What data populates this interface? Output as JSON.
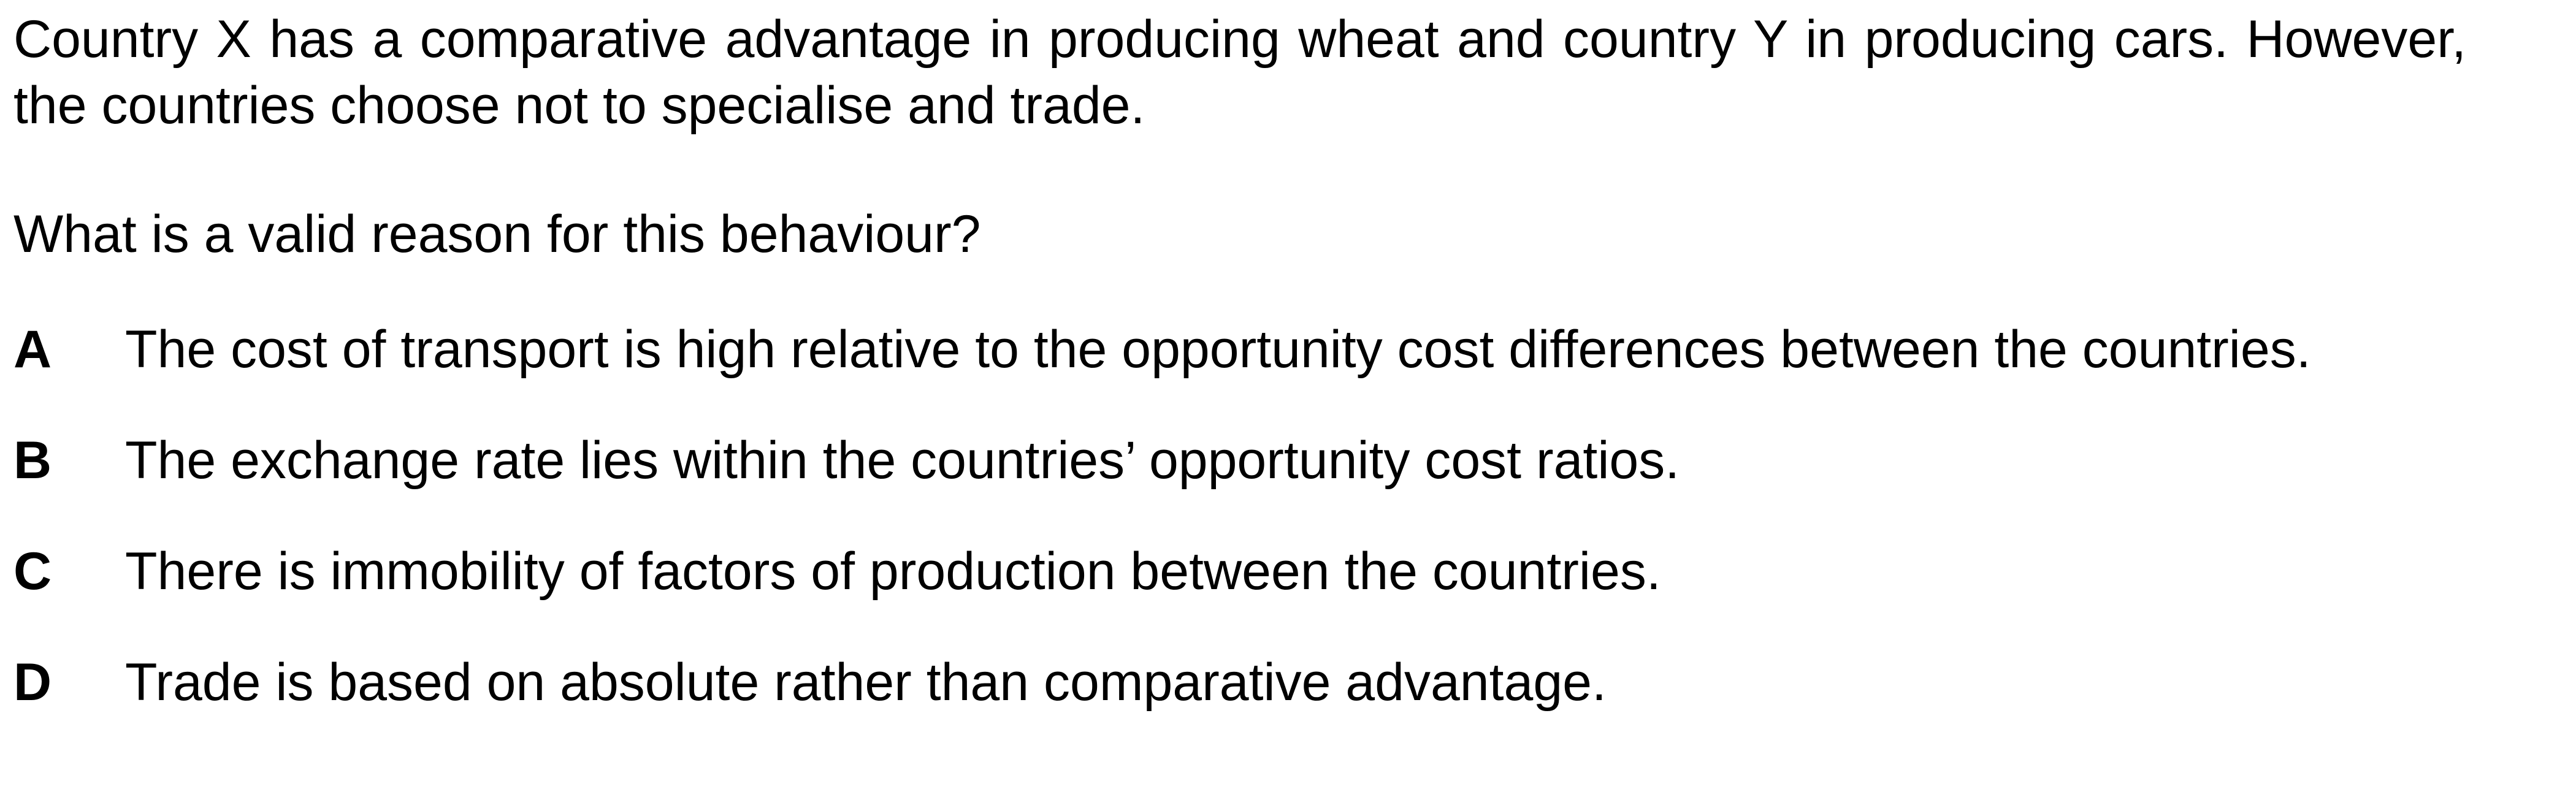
{
  "question": {
    "intro": "Country X has a comparative advantage in producing wheat and country Y in producing cars. However, the countries choose not to specialise and trade.",
    "prompt": "What is a valid reason for this behaviour?"
  },
  "options": [
    {
      "letter": "A",
      "text": "The cost of transport is high relative to the opportunity cost differences between the countries."
    },
    {
      "letter": "B",
      "text": "The exchange rate lies within the countries’ opportunity cost ratios."
    },
    {
      "letter": "C",
      "text": "There is immobility of factors of production between the countries."
    },
    {
      "letter": "D",
      "text": "Trade is based on absolute rather than comparative advantage."
    }
  ]
}
